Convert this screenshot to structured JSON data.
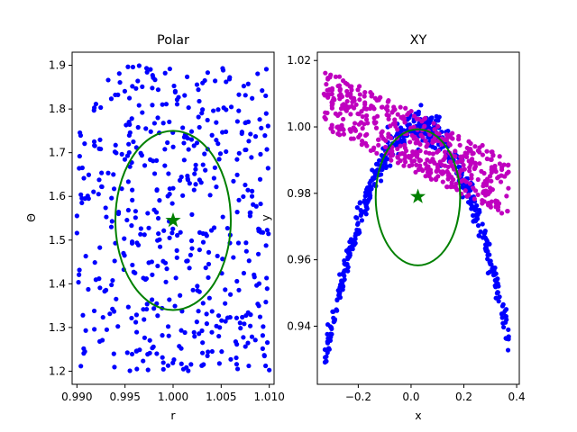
{
  "chart_data": [
    {
      "type": "scatter",
      "title": "Polar",
      "xlabel": "r",
      "ylabel": "Θ",
      "xlim": [
        0.9895,
        0.0105
      ],
      "ylim": [
        1.17,
        1.93
      ],
      "x_ticks": [
        "0.990",
        "0.995",
        "1.000",
        "1.005",
        "1.010"
      ],
      "y_ticks": [
        "1.2",
        "1.3",
        "1.4",
        "1.5",
        "1.6",
        "1.7",
        "1.8",
        "1.9"
      ],
      "grid": false,
      "series": [
        {
          "color": "#0000ff",
          "distribution": "uniform",
          "x_range": [
            0.99,
            1.01
          ],
          "y_range": [
            1.2,
            1.9
          ],
          "count": 500
        }
      ],
      "ellipse": {
        "center": [
          1.0,
          1.545
        ],
        "rx": 0.006,
        "ry": 0.205,
        "color": "#008000"
      },
      "star": {
        "x": 1.0,
        "y": 1.545,
        "color": "#008000"
      }
    },
    {
      "type": "scatter",
      "title": "XY",
      "xlabel": "x",
      "ylabel": "y",
      "xlim": [
        -0.355,
        0.41
      ],
      "ylim": [
        0.9225,
        1.0225
      ],
      "x_ticks": [
        "−0.2",
        "0.0",
        "0.2",
        "0.4"
      ],
      "y_ticks": [
        "0.94",
        "0.96",
        "0.98",
        "1.00",
        "1.02"
      ],
      "grid": false,
      "series": [
        {
          "color": "#0000ff",
          "shape": "arc",
          "x_range": [
            -0.33,
            0.37
          ],
          "count": 500
        },
        {
          "color": "#bf00bf",
          "shape": "band",
          "x_range": [
            -0.33,
            0.37
          ],
          "count": 500
        }
      ],
      "ellipse": {
        "center": [
          0.026,
          0.9788
        ],
        "rx": 0.16,
        "ry": 0.0205,
        "color": "#008000"
      },
      "star": {
        "x": 0.026,
        "y": 0.979,
        "color": "#008000"
      }
    }
  ]
}
